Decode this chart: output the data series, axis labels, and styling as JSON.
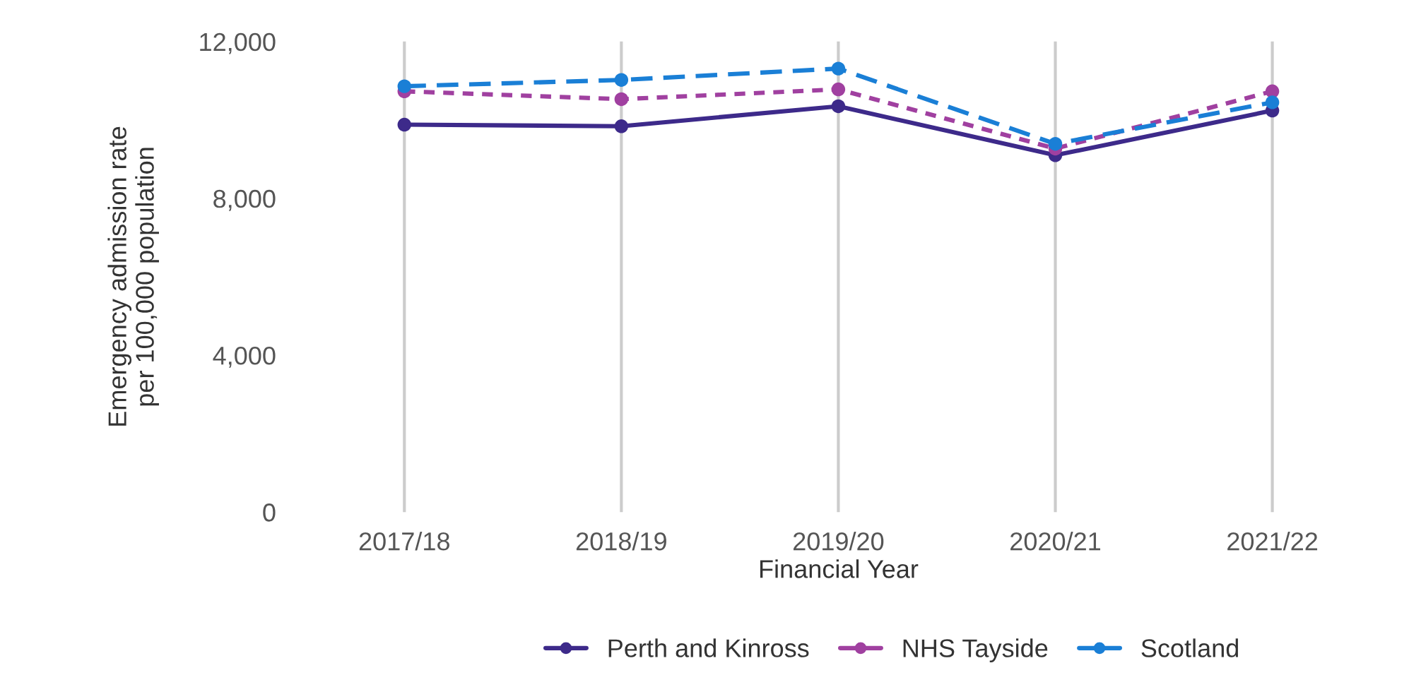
{
  "chart_data": {
    "type": "line",
    "xlabel": "Financial Year",
    "ylabel": "Emergency admission rate\nper 100,000 population",
    "categories": [
      "2017/18",
      "2018/19",
      "2019/20",
      "2020/21",
      "2021/22"
    ],
    "series": [
      {
        "name": "Perth and Kinross",
        "color": "#3d2a8a",
        "line_style": "solid",
        "values": [
          9880,
          9840,
          10350,
          9100,
          10240
        ]
      },
      {
        "name": "NHS Tayside",
        "color": "#a040a0",
        "line_style": "dotted",
        "values": [
          10730,
          10530,
          10780,
          9270,
          10730
        ]
      },
      {
        "name": "Scotland",
        "color": "#1a7fd6",
        "line_style": "dashed",
        "values": [
          10860,
          11020,
          11310,
          9390,
          10450
        ]
      }
    ],
    "ylim": [
      0,
      12000
    ],
    "yticks": [
      {
        "value": 0,
        "label": "0"
      },
      {
        "value": 4000,
        "label": "4,000"
      },
      {
        "value": 8000,
        "label": "8,000"
      },
      {
        "value": 12000,
        "label": "12,000"
      }
    ],
    "grid": "x",
    "legend": "bottom",
    "marker": "circle"
  }
}
